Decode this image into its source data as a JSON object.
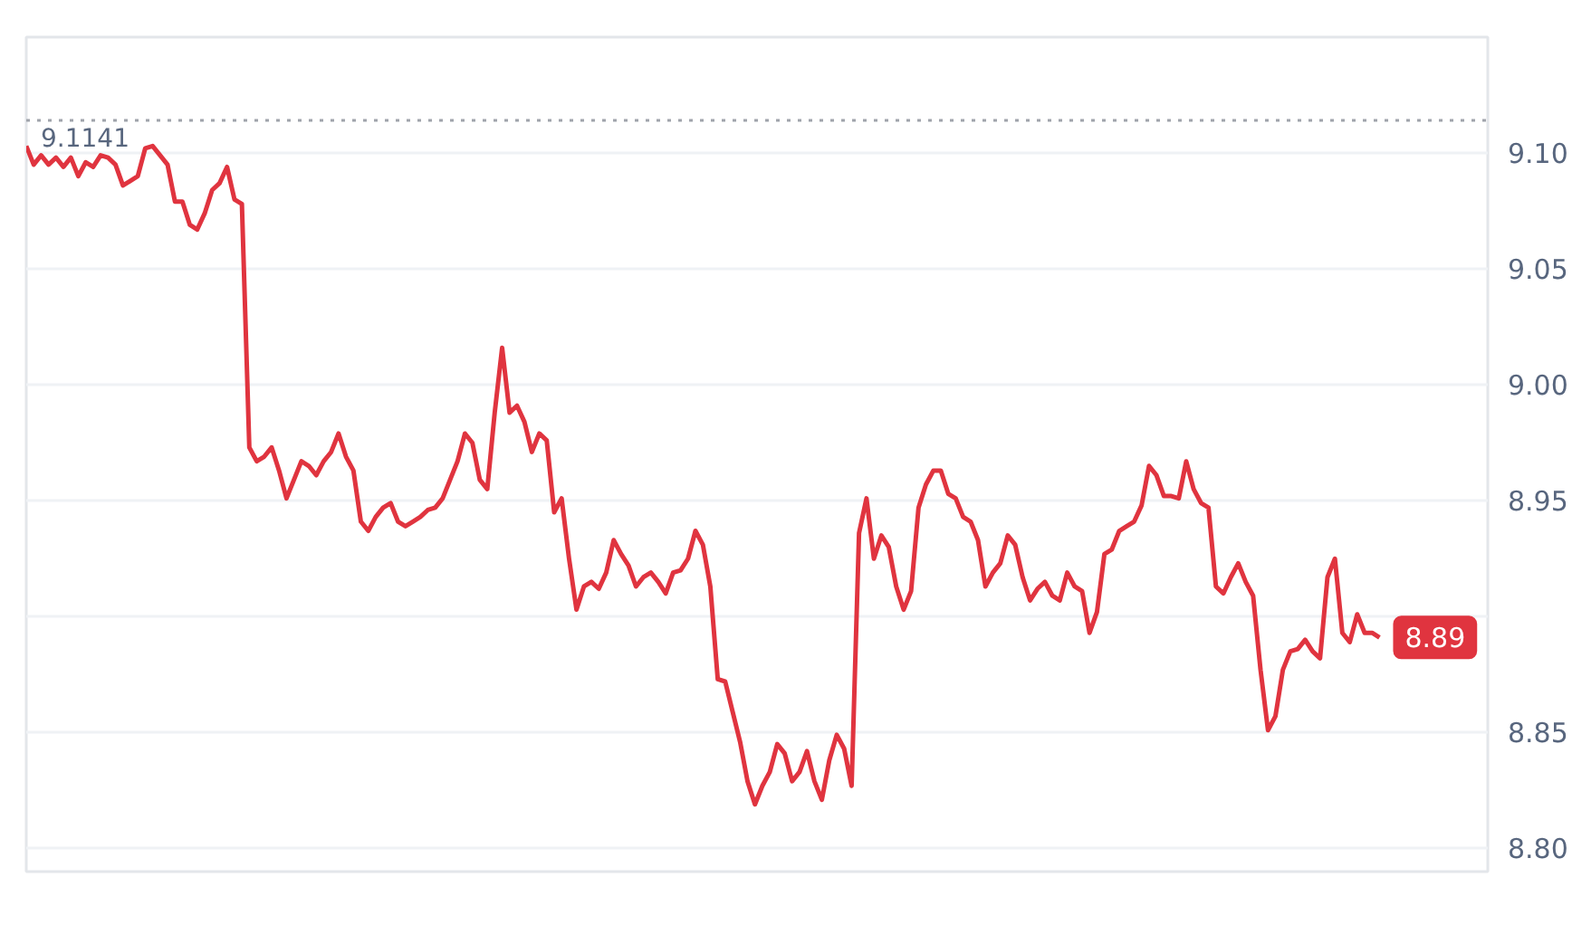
{
  "chart_data": {
    "type": "line",
    "categories": [
      null,
      null,
      null,
      null,
      null,
      null,
      null,
      null,
      null,
      null,
      null,
      null,
      null,
      null,
      null,
      null,
      null,
      null,
      null,
      null,
      null,
      null,
      null,
      null,
      null,
      null,
      null,
      null,
      null,
      null,
      null,
      null,
      null,
      null,
      null,
      null,
      null,
      null,
      null,
      null,
      null,
      null,
      null,
      null,
      null,
      null,
      null,
      null,
      null,
      null,
      null,
      null,
      null,
      null,
      null,
      null,
      null,
      null,
      null,
      null,
      null,
      null,
      null,
      null,
      null,
      null,
      null,
      null,
      null,
      null,
      null,
      null,
      null,
      null,
      null,
      null,
      null,
      null,
      null,
      null,
      null,
      null,
      null,
      null,
      null,
      null,
      null,
      null,
      null,
      null,
      null,
      null,
      null,
      null,
      null,
      null,
      null,
      null,
      null,
      null,
      null,
      null,
      null,
      null,
      null,
      null,
      null,
      null,
      null,
      null,
      null,
      null,
      null,
      null,
      null,
      null,
      null,
      null,
      null,
      null,
      null,
      null,
      null,
      null,
      null,
      null,
      null,
      null,
      null,
      null,
      null,
      null,
      null,
      null,
      null,
      null,
      null,
      null,
      null,
      null,
      null,
      null,
      null,
      null,
      null,
      null,
      null,
      null,
      null,
      null,
      null,
      null,
      null,
      null,
      null,
      null,
      null,
      null,
      null,
      null,
      null,
      null,
      null,
      null,
      null,
      null,
      null,
      null,
      null,
      null,
      null,
      null,
      null,
      null,
      null,
      null,
      null,
      null,
      null,
      null,
      null,
      null,
      null
    ],
    "series": [
      {
        "color": "#e0343f",
        "values": [
          9.103,
          9.095,
          9.099,
          9.095,
          9.098,
          9.094,
          9.098,
          9.09,
          9.096,
          9.094,
          9.099,
          9.098,
          9.095,
          9.086,
          9.088,
          9.09,
          9.102,
          9.103,
          9.099,
          9.095,
          9.079,
          9.079,
          9.069,
          9.067,
          9.074,
          9.084,
          9.087,
          9.094,
          9.08,
          9.078,
          8.973,
          8.967,
          8.969,
          8.973,
          8.963,
          8.951,
          8.959,
          8.967,
          8.965,
          8.961,
          8.967,
          8.971,
          8.979,
          8.969,
          8.963,
          8.941,
          8.937,
          8.943,
          8.947,
          8.949,
          8.941,
          8.939,
          8.941,
          8.943,
          8.946,
          8.947,
          8.951,
          8.959,
          8.967,
          8.979,
          8.975,
          8.959,
          8.955,
          8.988,
          9.016,
          8.988,
          8.991,
          8.984,
          8.971,
          8.979,
          8.976,
          8.945,
          8.951,
          8.925,
          8.903,
          8.913,
          8.915,
          8.912,
          8.919,
          8.933,
          8.927,
          8.922,
          8.913,
          8.917,
          8.919,
          8.915,
          8.91,
          8.919,
          8.92,
          8.925,
          8.937,
          8.931,
          8.913,
          8.873,
          8.872,
          8.859,
          8.846,
          8.829,
          8.819,
          8.827,
          8.833,
          8.845,
          8.841,
          8.829,
          8.833,
          8.842,
          8.829,
          8.821,
          8.838,
          8.849,
          8.843,
          8.827,
          8.936,
          8.951,
          8.925,
          8.935,
          8.93,
          8.913,
          8.903,
          8.911,
          8.947,
          8.957,
          8.963,
          8.963,
          8.953,
          8.951,
          8.943,
          8.941,
          8.933,
          8.913,
          8.919,
          8.923,
          8.935,
          8.931,
          8.917,
          8.907,
          8.912,
          8.915,
          8.909,
          8.907,
          8.919,
          8.913,
          8.911,
          8.893,
          8.902,
          8.927,
          8.929,
          8.937,
          8.939,
          8.941,
          8.948,
          8.965,
          8.961,
          8.952,
          8.952,
          8.951,
          8.967,
          8.955,
          8.949,
          8.947,
          8.913,
          8.91,
          8.917,
          8.923,
          8.915,
          8.909,
          8.877,
          8.851,
          8.857,
          8.877,
          8.885,
          8.886,
          8.89,
          8.885,
          8.882,
          8.917,
          8.925,
          8.893,
          8.889,
          8.901,
          8.893,
          8.893,
          8.891
        ]
      }
    ],
    "ylim": [
      8.79,
      9.15
    ],
    "yticks": [
      {
        "value": 8.8,
        "label": "8.80"
      },
      {
        "value": 8.85,
        "label": "8.85"
      },
      {
        "value": 8.9,
        "label": null
      },
      {
        "value": 8.95,
        "label": "8.95"
      },
      {
        "value": 9.0,
        "label": "9.00"
      },
      {
        "value": 9.05,
        "label": "9.05"
      },
      {
        "value": 9.1,
        "label": "9.10"
      }
    ],
    "ref_lines": [
      {
        "axis": "y",
        "value": 9.1141,
        "label": "9.1141",
        "color": "#a0a4ab",
        "line_style": "dotted"
      }
    ],
    "annotations": [
      "8.89"
    ],
    "grid": "y",
    "tick_labels": "y",
    "line_style": "solid"
  }
}
